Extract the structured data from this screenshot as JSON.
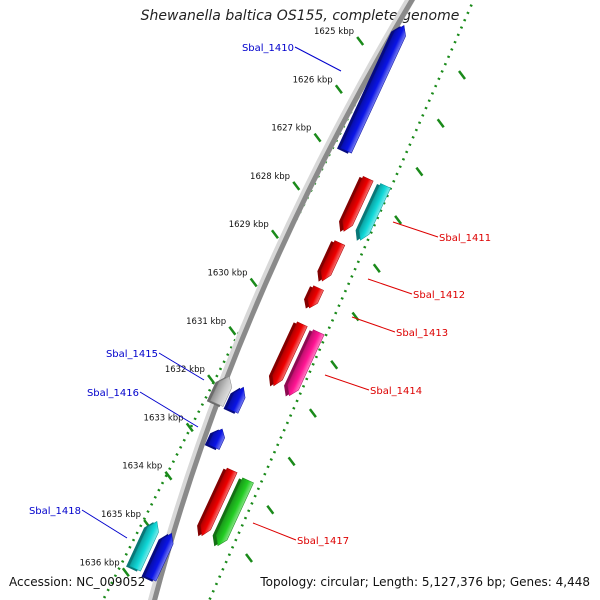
{
  "title": "Shewanella baltica OS155, complete genome",
  "accession": "Accession: NC_009052",
  "summary": "Topology: circular; Length: 5,127,376 bp; Genes: 4,448",
  "colors": {
    "backbone": "#8a8a8a",
    "ruler": "#1a8a1a",
    "label_blue": "#0000cc",
    "label_red": "#dd0000",
    "gene_blue": "#0a14e6",
    "gene_red": "#ee0000",
    "gene_cyan": "#10d8d8",
    "gene_magenta": "#ff1493",
    "gene_green": "#22cc22",
    "gene_gray": "#c4c4c4"
  },
  "ticks": [
    {
      "label": "1625 kbp"
    },
    {
      "label": "1626 kbp"
    },
    {
      "label": "1627 kbp"
    },
    {
      "label": "1628 kbp"
    },
    {
      "label": "1629 kbp"
    },
    {
      "label": "1630 kbp"
    },
    {
      "label": "1631 kbp"
    },
    {
      "label": "1632 kbp"
    },
    {
      "label": "1633 kbp"
    },
    {
      "label": "1634 kbp"
    },
    {
      "label": "1635 kbp"
    },
    {
      "label": "1636 kbp"
    }
  ],
  "genes": [
    {
      "name": "Sbal_1410",
      "labeled": true,
      "color": "gene_blue",
      "strand": "reverse"
    },
    {
      "name": "Sbal_1411",
      "labeled": true,
      "color": "gene_cyan",
      "strand": "forward"
    },
    {
      "name": "",
      "labeled": false,
      "color": "gene_red",
      "strand": "forward"
    },
    {
      "name": "Sbal_1412",
      "labeled": true,
      "color": "gene_red",
      "strand": "forward"
    },
    {
      "name": "Sbal_1413",
      "labeled": true,
      "color": "gene_red",
      "strand": "forward"
    },
    {
      "name": "Sbal_1414",
      "labeled": true,
      "color": "gene_magenta",
      "strand": "forward"
    },
    {
      "name": "",
      "labeled": false,
      "color": "gene_red",
      "strand": "forward"
    },
    {
      "name": "Sbal_1415",
      "labeled": true,
      "color": "gene_gray",
      "strand": "reverse"
    },
    {
      "name": "",
      "labeled": false,
      "color": "gene_blue",
      "strand": "reverse"
    },
    {
      "name": "Sbal_1416",
      "labeled": true,
      "color": "gene_blue",
      "strand": "reverse"
    },
    {
      "name": "Sbal_1417",
      "labeled": true,
      "color": "gene_green",
      "strand": "forward"
    },
    {
      "name": "",
      "labeled": false,
      "color": "gene_red",
      "strand": "forward"
    },
    {
      "name": "Sbal_1418",
      "labeled": true,
      "color": "gene_cyan",
      "strand": "reverse"
    },
    {
      "name": "",
      "labeled": false,
      "color": "gene_blue",
      "strand": "reverse"
    }
  ]
}
